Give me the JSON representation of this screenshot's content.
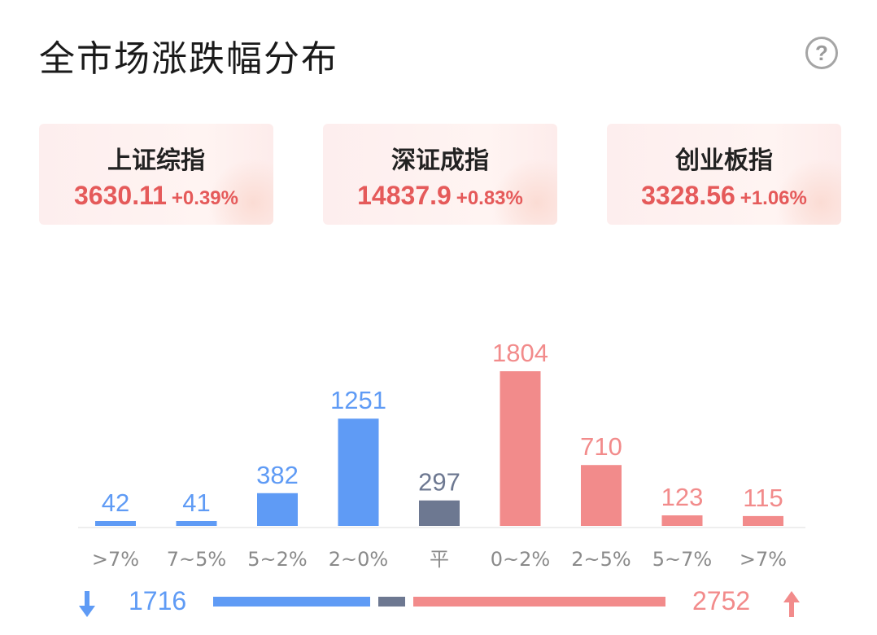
{
  "header": {
    "title": "全市场涨跌幅分布",
    "help_icon": "?"
  },
  "indices": [
    {
      "name": "上证综指",
      "value": "3630.11",
      "change": "+0.39%"
    },
    {
      "name": "深证成指",
      "value": "14837.9",
      "change": "+0.83%"
    },
    {
      "name": "创业板指",
      "value": "3328.56",
      "change": "+1.06%"
    }
  ],
  "chart_data": {
    "type": "bar",
    "categories": [
      ">7%",
      "7~5%",
      "5~2%",
      "2~0%",
      "平",
      "0~2%",
      "2~5%",
      "5~7%",
      ">7%"
    ],
    "values": [
      42,
      41,
      382,
      1251,
      297,
      1804,
      710,
      123,
      115
    ],
    "colors": [
      "#5f9bf5",
      "#5f9bf5",
      "#5f9bf5",
      "#5f9bf5",
      "#6d7891",
      "#f28b8b",
      "#f28b8b",
      "#f28b8b",
      "#f28b8b"
    ],
    "label_colors": [
      "#5f9bf5",
      "#5f9bf5",
      "#5f9bf5",
      "#5f9bf5",
      "#6d7891",
      "#f28b8b",
      "#f28b8b",
      "#f28b8b",
      "#f28b8b"
    ],
    "title": "",
    "xlabel": "",
    "ylabel": "",
    "ylim": [
      0,
      1804
    ]
  },
  "summary": {
    "down_count": "1716",
    "up_count": "2752",
    "flat_count": 297,
    "down_color": "#5f9bf5",
    "flat_color": "#6d7891",
    "up_color": "#f28b8b"
  }
}
